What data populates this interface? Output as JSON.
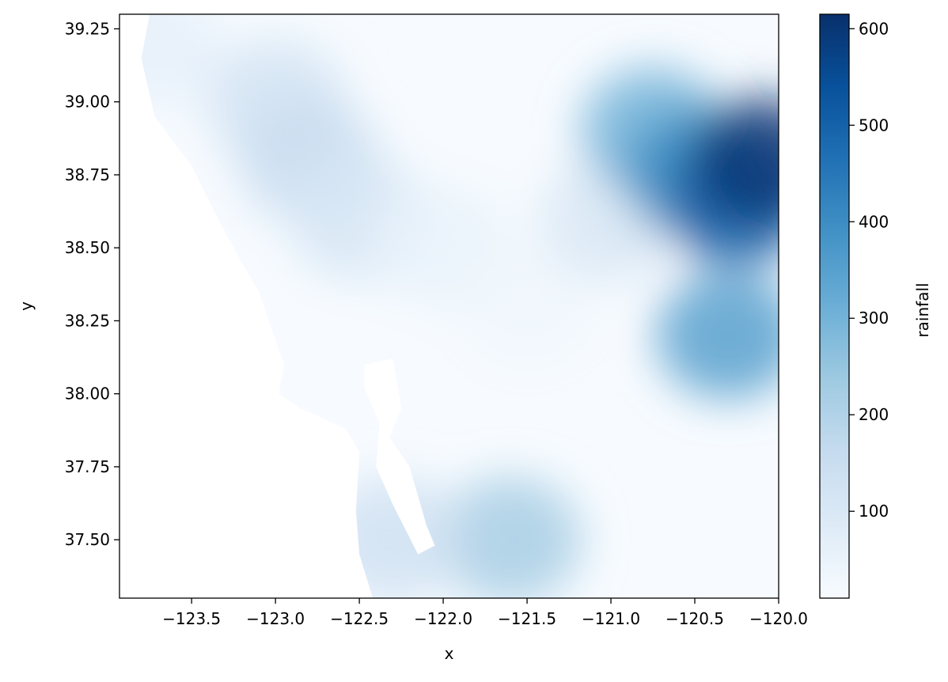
{
  "chart_data": {
    "type": "heatmap",
    "title": "",
    "xlabel": "x",
    "ylabel": "y",
    "colorbar_label": "rainfall",
    "colormap": "Blues",
    "xlim": [
      -123.93,
      -120.0
    ],
    "ylim": [
      37.3,
      39.3
    ],
    "clim": [
      10,
      615
    ],
    "x_ticks": [
      -123.5,
      -123.0,
      -122.5,
      -122.0,
      -121.5,
      -121.0,
      -120.5,
      -120.0
    ],
    "x_tick_labels": [
      "−123.5",
      "−123.0",
      "−122.5",
      "−122.0",
      "−121.5",
      "−121.0",
      "−120.5",
      "−120.0"
    ],
    "y_ticks": [
      37.5,
      37.75,
      38.0,
      38.25,
      38.5,
      38.75,
      39.0,
      39.25
    ],
    "y_tick_labels": [
      "37.50",
      "37.75",
      "38.00",
      "38.25",
      "38.50",
      "38.75",
      "39.00",
      "39.25"
    ],
    "colorbar_ticks": [
      100,
      200,
      300,
      400,
      500,
      600
    ],
    "colorbar_tick_labels": [
      "100",
      "200",
      "300",
      "400",
      "500",
      "600"
    ],
    "grid": false,
    "nodata_regions": [
      {
        "name": "ocean",
        "polygon": [
          [
            -123.93,
            39.3
          ],
          [
            -123.75,
            39.3
          ],
          [
            -123.8,
            39.15
          ],
          [
            -123.72,
            38.95
          ],
          [
            -123.5,
            38.78
          ],
          [
            -123.3,
            38.55
          ],
          [
            -123.1,
            38.35
          ],
          [
            -122.95,
            38.1
          ],
          [
            -122.98,
            38.0
          ],
          [
            -122.85,
            37.95
          ],
          [
            -122.58,
            37.88
          ],
          [
            -122.5,
            37.8
          ],
          [
            -122.52,
            37.6
          ],
          [
            -122.5,
            37.45
          ],
          [
            -122.42,
            37.3
          ],
          [
            -123.93,
            37.3
          ]
        ]
      },
      {
        "name": "bay",
        "polygon": [
          [
            -122.47,
            38.1
          ],
          [
            -122.3,
            38.12
          ],
          [
            -122.25,
            37.95
          ],
          [
            -122.32,
            37.85
          ],
          [
            -122.2,
            37.75
          ],
          [
            -122.1,
            37.55
          ],
          [
            -122.05,
            37.48
          ],
          [
            -122.15,
            37.45
          ],
          [
            -122.3,
            37.62
          ],
          [
            -122.4,
            37.75
          ],
          [
            -122.38,
            37.9
          ],
          [
            -122.47,
            38.02
          ]
        ]
      }
    ],
    "rainfall_field": [
      {
        "x": -123.75,
        "y": 39.2,
        "value": 60
      },
      {
        "x": -123.0,
        "y": 39.0,
        "value": 120
      },
      {
        "x": -122.8,
        "y": 38.8,
        "value": 150
      },
      {
        "x": -122.5,
        "y": 38.6,
        "value": 110
      },
      {
        "x": -122.0,
        "y": 38.5,
        "value": 50
      },
      {
        "x": -121.5,
        "y": 38.3,
        "value": 30
      },
      {
        "x": -121.0,
        "y": 38.6,
        "value": 100
      },
      {
        "x": -120.75,
        "y": 38.9,
        "value": 300
      },
      {
        "x": -120.5,
        "y": 38.75,
        "value": 400
      },
      {
        "x": -120.25,
        "y": 38.65,
        "value": 500
      },
      {
        "x": -120.1,
        "y": 38.8,
        "value": 600
      },
      {
        "x": -120.3,
        "y": 38.2,
        "value": 350
      },
      {
        "x": -121.6,
        "y": 37.5,
        "value": 220
      },
      {
        "x": -122.3,
        "y": 37.5,
        "value": 130
      }
    ]
  }
}
